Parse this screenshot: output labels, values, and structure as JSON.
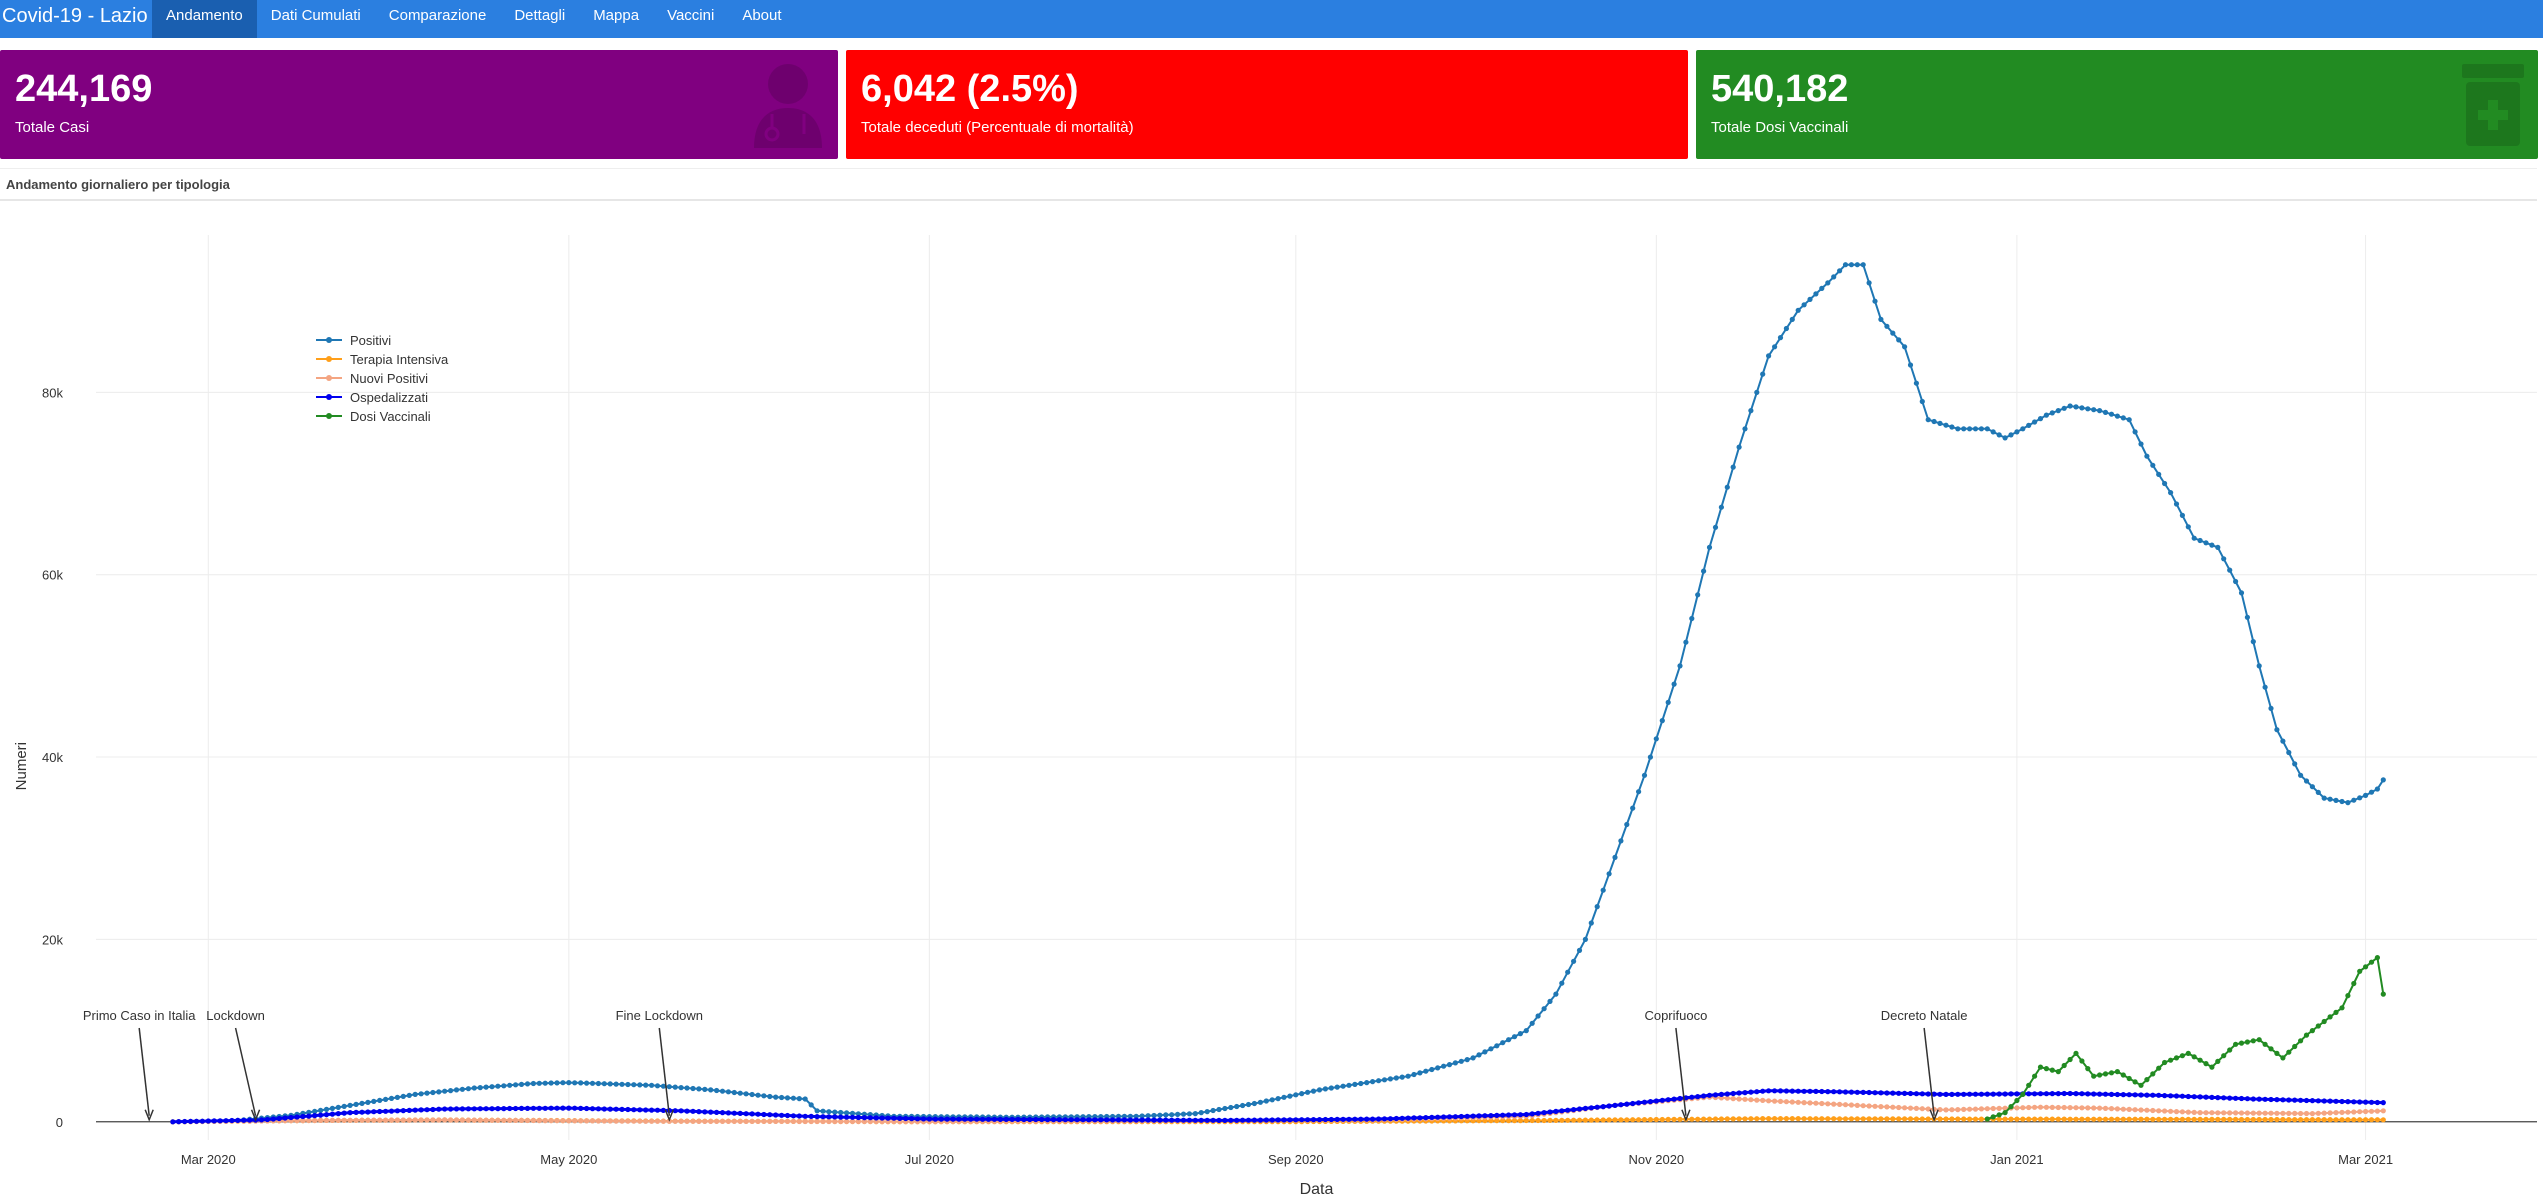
{
  "app": {
    "title": "Covid-19 - Lazio",
    "nav": [
      "Andamento",
      "Dati Cumulati",
      "Comparazione",
      "Dettagli",
      "Mappa",
      "Vaccini",
      "About"
    ],
    "active_nav": "Andamento"
  },
  "cards": [
    {
      "value": "244,169",
      "label": "Totale Casi",
      "color": "#800080",
      "icon": "doctor-icon"
    },
    {
      "value": "6,042 (2.5%)",
      "label": "Totale deceduti (Percentuale di mortalità)",
      "color": "#ff0000",
      "icon": ""
    },
    {
      "value": "540,182",
      "label": "Totale Dosi Vaccinali",
      "color": "#228b22",
      "icon": "medicine-bottle-icon"
    }
  ],
  "panel": {
    "title": "Andamento giornaliero per tipologia"
  },
  "chart_data": {
    "type": "line",
    "xlabel": "Data",
    "ylabel": "Numeri",
    "x_range": [
      "2020-02-11",
      "2021-03-30"
    ],
    "ylim": [
      -2000,
      100000
    ],
    "x_ticks": [
      {
        "date": "2020-03-01",
        "label": "Mar 2020"
      },
      {
        "date": "2020-05-01",
        "label": "May 2020"
      },
      {
        "date": "2020-07-01",
        "label": "Jul 2020"
      },
      {
        "date": "2020-09-01",
        "label": "Sep 2020"
      },
      {
        "date": "2020-11-01",
        "label": "Nov 2020"
      },
      {
        "date": "2021-01-01",
        "label": "Jan 2021"
      },
      {
        "date": "2021-03-01",
        "label": "Mar 2021"
      }
    ],
    "y_ticks": [
      {
        "value": 0,
        "label": "0"
      },
      {
        "value": 20000,
        "label": "20k"
      },
      {
        "value": 40000,
        "label": "40k"
      },
      {
        "value": 60000,
        "label": "60k"
      },
      {
        "value": 80000,
        "label": "80k"
      }
    ],
    "grid": true,
    "legend_position": "top-left",
    "series": [
      {
        "name": "Positivi",
        "color": "#1f77b4",
        "start": "2020-02-24",
        "end": "2021-03-04",
        "points": [
          [
            "2020-02-24",
            0
          ],
          [
            "2020-03-05",
            100
          ],
          [
            "2020-03-15",
            700
          ],
          [
            "2020-03-25",
            1800
          ],
          [
            "2020-04-05",
            3000
          ],
          [
            "2020-04-15",
            3700
          ],
          [
            "2020-04-25",
            4200
          ],
          [
            "2020-05-01",
            4300
          ],
          [
            "2020-05-15",
            4000
          ],
          [
            "2020-05-25",
            3500
          ],
          [
            "2020-06-05",
            2700
          ],
          [
            "2020-06-10",
            2500
          ],
          [
            "2020-06-12",
            1200
          ],
          [
            "2020-06-25",
            600
          ],
          [
            "2020-07-15",
            500
          ],
          [
            "2020-08-05",
            600
          ],
          [
            "2020-08-15",
            900
          ],
          [
            "2020-08-25",
            2000
          ],
          [
            "2020-09-05",
            3500
          ],
          [
            "2020-09-20",
            5000
          ],
          [
            "2020-10-01",
            7000
          ],
          [
            "2020-10-10",
            10000
          ],
          [
            "2020-10-15",
            14000
          ],
          [
            "2020-10-20",
            20000
          ],
          [
            "2020-10-25",
            29000
          ],
          [
            "2020-10-30",
            38000
          ],
          [
            "2020-11-05",
            50000
          ],
          [
            "2020-11-10",
            63000
          ],
          [
            "2020-11-15",
            74000
          ],
          [
            "2020-11-20",
            84000
          ],
          [
            "2020-11-25",
            89000
          ],
          [
            "2020-11-30",
            92000
          ],
          [
            "2020-12-03",
            94000
          ],
          [
            "2020-12-06",
            94000
          ],
          [
            "2020-12-09",
            88000
          ],
          [
            "2020-12-13",
            85000
          ],
          [
            "2020-12-17",
            77000
          ],
          [
            "2020-12-22",
            76000
          ],
          [
            "2020-12-27",
            76000
          ],
          [
            "2020-12-30",
            75000
          ],
          [
            "2021-01-02",
            76000
          ],
          [
            "2021-01-06",
            77500
          ],
          [
            "2021-01-10",
            78500
          ],
          [
            "2021-01-15",
            78000
          ],
          [
            "2021-01-20",
            77000
          ],
          [
            "2021-01-23",
            73000
          ],
          [
            "2021-01-27",
            69000
          ],
          [
            "2021-01-31",
            64000
          ],
          [
            "2021-02-04",
            63000
          ],
          [
            "2021-02-08",
            58000
          ],
          [
            "2021-02-11",
            50000
          ],
          [
            "2021-02-14",
            43000
          ],
          [
            "2021-02-18",
            38000
          ],
          [
            "2021-02-22",
            35500
          ],
          [
            "2021-02-26",
            35000
          ],
          [
            "2021-03-01",
            35800
          ],
          [
            "2021-03-03",
            36500
          ],
          [
            "2021-03-04",
            37500
          ]
        ]
      },
      {
        "name": "Terapia Intensiva",
        "color": "#ff9f1a",
        "start": "2020-02-24",
        "end": "2021-03-04",
        "points": [
          [
            "2020-02-24",
            0
          ],
          [
            "2020-03-20",
            150
          ],
          [
            "2020-04-10",
            200
          ],
          [
            "2020-05-15",
            80
          ],
          [
            "2020-07-01",
            10
          ],
          [
            "2020-09-01",
            20
          ],
          [
            "2020-10-15",
            150
          ],
          [
            "2020-11-20",
            350
          ],
          [
            "2020-12-20",
            300
          ],
          [
            "2021-01-20",
            280
          ],
          [
            "2021-03-04",
            220
          ]
        ]
      },
      {
        "name": "Nuovi Positivi",
        "color": "#f4a582",
        "start": "2020-02-24",
        "end": "2021-03-04",
        "points": [
          [
            "2020-02-24",
            0
          ],
          [
            "2020-03-20",
            150
          ],
          [
            "2020-04-10",
            200
          ],
          [
            "2020-05-15",
            50
          ],
          [
            "2020-07-01",
            20
          ],
          [
            "2020-08-20",
            120
          ],
          [
            "2020-09-15",
            200
          ],
          [
            "2020-10-10",
            600
          ],
          [
            "2020-10-25",
            1800
          ],
          [
            "2020-11-10",
            2700
          ],
          [
            "2020-11-20",
            2300
          ],
          [
            "2020-12-05",
            1800
          ],
          [
            "2020-12-20",
            1300
          ],
          [
            "2021-01-05",
            1600
          ],
          [
            "2021-01-15",
            1500
          ],
          [
            "2021-02-01",
            1000
          ],
          [
            "2021-02-20",
            900
          ],
          [
            "2021-03-04",
            1200
          ]
        ]
      },
      {
        "name": "Ospedalizzati",
        "color": "#0000ee",
        "start": "2020-02-24",
        "end": "2021-03-04",
        "points": [
          [
            "2020-02-24",
            0
          ],
          [
            "2020-03-10",
            200
          ],
          [
            "2020-03-25",
            1000
          ],
          [
            "2020-04-10",
            1400
          ],
          [
            "2020-05-01",
            1500
          ],
          [
            "2020-05-20",
            1200
          ],
          [
            "2020-06-10",
            600
          ],
          [
            "2020-07-01",
            300
          ],
          [
            "2020-08-20",
            150
          ],
          [
            "2020-09-15",
            300
          ],
          [
            "2020-10-10",
            800
          ],
          [
            "2020-10-25",
            1800
          ],
          [
            "2020-11-10",
            2900
          ],
          [
            "2020-11-20",
            3400
          ],
          [
            "2020-12-01",
            3300
          ],
          [
            "2020-12-20",
            3000
          ],
          [
            "2021-01-10",
            3100
          ],
          [
            "2021-01-25",
            2900
          ],
          [
            "2021-02-10",
            2500
          ],
          [
            "2021-03-04",
            2100
          ]
        ]
      },
      {
        "name": "Dosi Vaccinali",
        "color": "#228b22",
        "start": "2020-12-27",
        "end": "2021-03-04",
        "points": [
          [
            "2020-12-27",
            300
          ],
          [
            "2020-12-30",
            1000
          ],
          [
            "2021-01-02",
            3000
          ],
          [
            "2021-01-05",
            6000
          ],
          [
            "2021-01-08",
            5500
          ],
          [
            "2021-01-11",
            7500
          ],
          [
            "2021-01-14",
            5000
          ],
          [
            "2021-01-18",
            5500
          ],
          [
            "2021-01-22",
            4000
          ],
          [
            "2021-01-26",
            6500
          ],
          [
            "2021-01-30",
            7500
          ],
          [
            "2021-02-03",
            6000
          ],
          [
            "2021-02-07",
            8500
          ],
          [
            "2021-02-11",
            9000
          ],
          [
            "2021-02-15",
            7000
          ],
          [
            "2021-02-19",
            9500
          ],
          [
            "2021-02-22",
            11000
          ],
          [
            "2021-02-25",
            12500
          ],
          [
            "2021-02-28",
            16500
          ],
          [
            "2021-03-02",
            17500
          ],
          [
            "2021-03-03",
            18000
          ],
          [
            "2021-03-04",
            14000
          ]
        ]
      }
    ],
    "annotations": [
      {
        "text": "Primo Caso in Italia",
        "date": "2020-02-20"
      },
      {
        "text": "Lockdown",
        "date": "2020-03-09"
      },
      {
        "text": "Fine Lockdown",
        "date": "2020-05-18"
      },
      {
        "text": "Coprifuoco",
        "date": "2020-11-06"
      },
      {
        "text": "Decreto Natale",
        "date": "2020-12-18"
      }
    ]
  }
}
